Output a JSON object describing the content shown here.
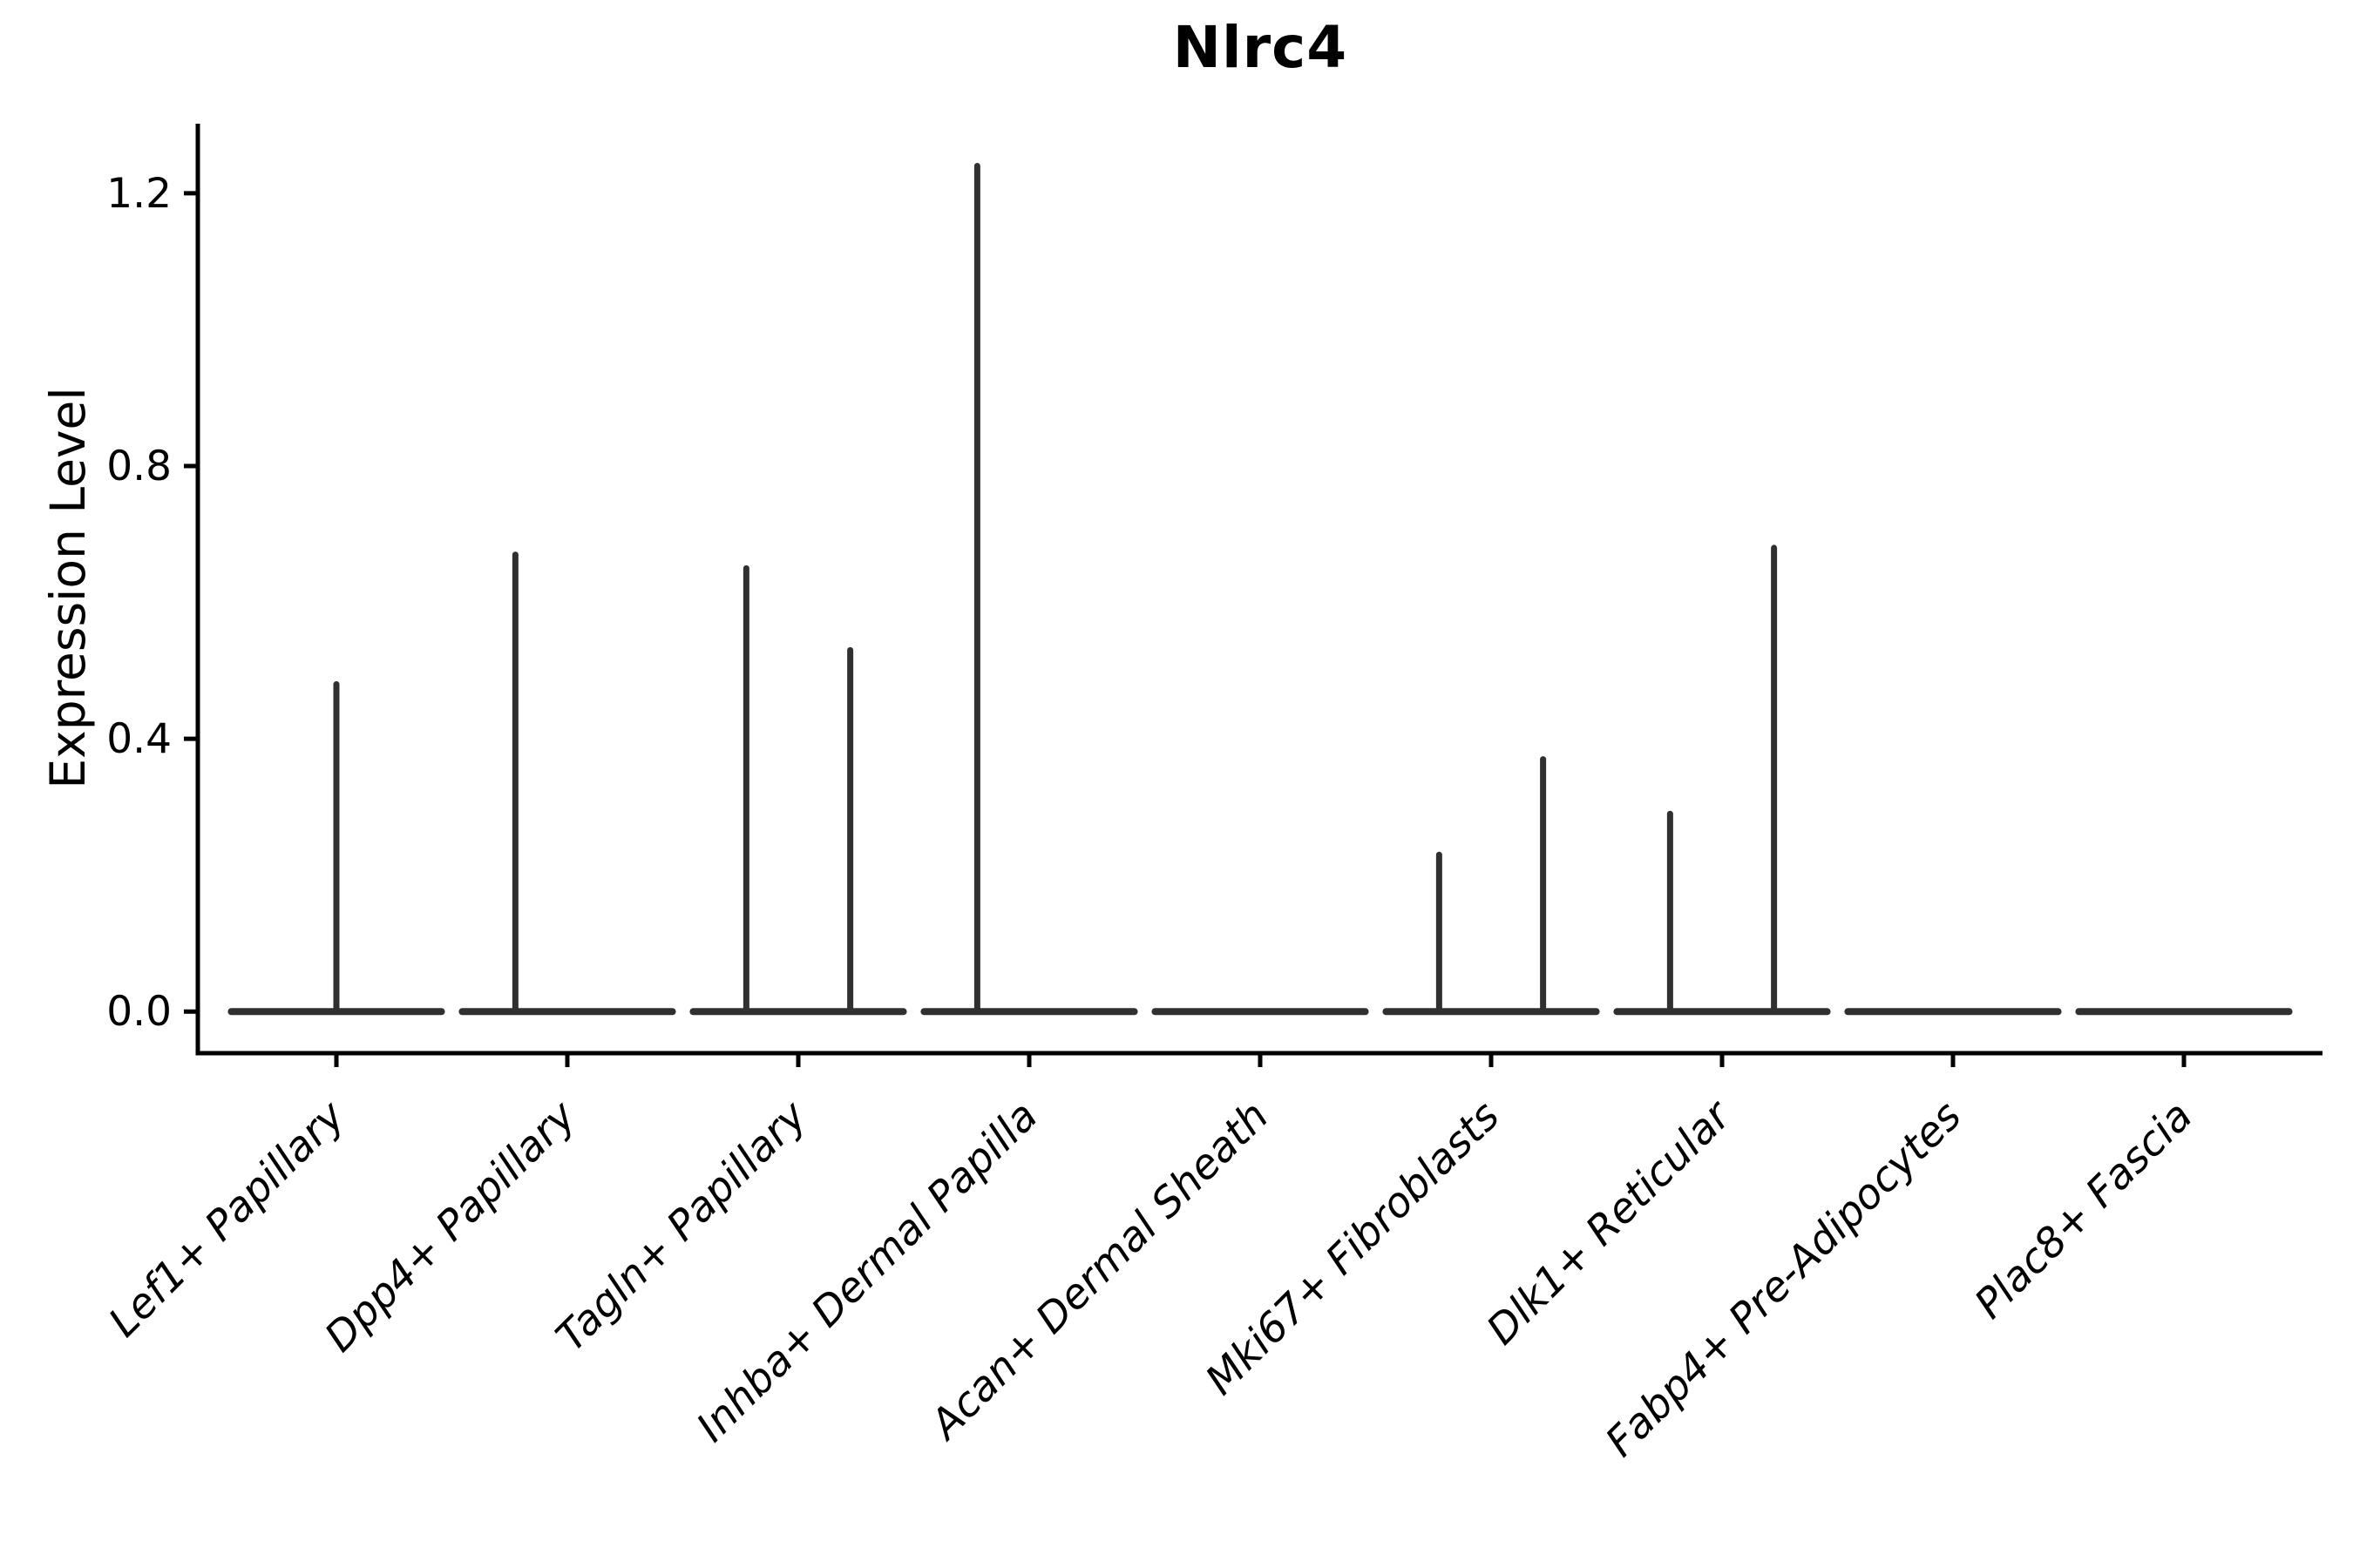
{
  "chart_data": {
    "type": "violin",
    "title": "Nlrc4",
    "ylabel": "Expression Level",
    "xlabel": "",
    "grid": false,
    "legend": "none",
    "y_ticks": [
      {
        "label": "0.0",
        "value": 0.0
      },
      {
        "label": "0.4",
        "value": 0.4
      },
      {
        "label": "0.8",
        "value": 0.8
      },
      {
        "label": "1.2",
        "value": 1.2
      }
    ],
    "ylim": [
      -0.061,
      1.302
    ],
    "categories": [
      "Lef1+ Papillary",
      "Dpp4+ Papillary",
      "Tagln+ Papillary",
      "Inhba+ Dermal Papilla",
      "Acan+ Dermal Sheath",
      "Mki67+ Fibroblasts",
      "Dlk1+ Reticular",
      "Fabp4+ Pre-Adipocytes",
      "Plac8+ Fascia"
    ],
    "violins": [
      {
        "category": "Lef1+ Papillary",
        "baseline_value": 0,
        "spikes": [
          {
            "offset": 0.0,
            "max_expression": 0.48
          }
        ]
      },
      {
        "category": "Dpp4+ Papillary",
        "baseline_value": 0,
        "spikes": [
          {
            "offset": -0.225,
            "max_expression": 0.67
          }
        ]
      },
      {
        "category": "Tagln+ Papillary",
        "baseline_value": 0,
        "spikes": [
          {
            "offset": -0.225,
            "max_expression": 0.65
          },
          {
            "offset": 0.225,
            "max_expression": 0.53
          }
        ]
      },
      {
        "category": "Inhba+ Dermal Papilla",
        "baseline_value": 0,
        "spikes": [
          {
            "offset": -0.225,
            "max_expression": 1.24
          }
        ]
      },
      {
        "category": "Acan+ Dermal Sheath",
        "baseline_value": 0,
        "spikes": []
      },
      {
        "category": "Mki67+ Fibroblasts",
        "baseline_value": 0,
        "spikes": [
          {
            "offset": -0.225,
            "max_expression": 0.23
          },
          {
            "offset": 0.225,
            "max_expression": 0.37
          }
        ]
      },
      {
        "category": "Dlk1+ Reticular",
        "baseline_value": 0,
        "spikes": [
          {
            "offset": -0.225,
            "max_expression": 0.29
          },
          {
            "offset": 0.225,
            "max_expression": 0.68
          }
        ]
      },
      {
        "category": "Fabp4+ Pre-Adipocytes",
        "baseline_value": 0,
        "spikes": []
      },
      {
        "category": "Plac8+ Fascia",
        "baseline_value": 0,
        "spikes": []
      }
    ],
    "violin_half_width": 0.455,
    "colors": {
      "violin": "#303030",
      "axis": "#000000",
      "text": "#000000",
      "background": "#ffffff"
    }
  }
}
